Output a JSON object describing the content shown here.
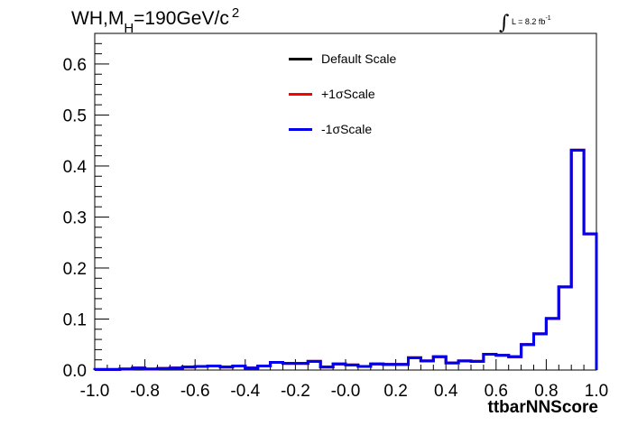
{
  "figure": {
    "title_main": "WH,M",
    "title_sub": "H",
    "title_rest": "=190GeV/c",
    "title_sup": "2",
    "lumi_label": "L = 8.2 fb",
    "lumi_sup": "-1",
    "integral_symbol": "∫"
  },
  "chart_data": {
    "type": "line",
    "title": "WH,M_H=190GeV/c^2",
    "xlabel": "ttbarNNScore",
    "ylabel": "",
    "xlim": [
      -1.0,
      1.0
    ],
    "ylim": [
      0,
      0.66
    ],
    "xticks": [
      -1.0,
      -0.8,
      -0.6,
      -0.4,
      -0.2,
      0.0,
      0.2,
      0.4,
      0.6,
      0.8,
      1.0
    ],
    "xtick_labels": [
      "-1.0",
      "-0.8",
      "-0.6",
      "-0.4",
      "-0.2",
      "-0.0",
      "0.2",
      "0.4",
      "0.6",
      "0.8",
      "1.0"
    ],
    "yticks": [
      0,
      0.1,
      0.2,
      0.3,
      0.4,
      0.5,
      0.6
    ],
    "ytick_labels": [
      "0.0",
      "0.1",
      "0.2",
      "0.3",
      "0.4",
      "0.5",
      "0.6"
    ],
    "grid": false,
    "legend_position": "top-center",
    "bin_edges": [
      -1.0,
      -0.95,
      -0.9,
      -0.85,
      -0.8,
      -0.75,
      -0.7,
      -0.65,
      -0.6,
      -0.55,
      -0.5,
      -0.45,
      -0.4,
      -0.35,
      -0.3,
      -0.25,
      -0.2,
      -0.15,
      -0.1,
      -0.05,
      0.0,
      0.05,
      0.1,
      0.15,
      0.2,
      0.25,
      0.3,
      0.35,
      0.4,
      0.45,
      0.5,
      0.55,
      0.6,
      0.65,
      0.7,
      0.75,
      0.8,
      0.85,
      0.9,
      0.95,
      1.0
    ],
    "series": [
      {
        "name": "Default Scale",
        "color": "#000000",
        "values": [
          0.001,
          0.001,
          0.002,
          0.004,
          0.002,
          0.003,
          0.004,
          0.006,
          0.007,
          0.008,
          0.006,
          0.008,
          0.004,
          0.008,
          0.015,
          0.013,
          0.013,
          0.017,
          0.006,
          0.012,
          0.01,
          0.007,
          0.012,
          0.011,
          0.011,
          0.024,
          0.018,
          0.026,
          0.014,
          0.018,
          0.017,
          0.031,
          0.029,
          0.026,
          0.05,
          0.071,
          0.101,
          0.163,
          0.431,
          0.267
        ]
      },
      {
        "name": "+1σScale",
        "color": "#ff0000",
        "values": [
          0.001,
          0.001,
          0.002,
          0.004,
          0.002,
          0.003,
          0.004,
          0.006,
          0.007,
          0.008,
          0.006,
          0.008,
          0.004,
          0.008,
          0.015,
          0.013,
          0.013,
          0.017,
          0.006,
          0.012,
          0.01,
          0.007,
          0.012,
          0.011,
          0.011,
          0.024,
          0.018,
          0.026,
          0.014,
          0.018,
          0.017,
          0.031,
          0.029,
          0.026,
          0.05,
          0.071,
          0.101,
          0.163,
          0.431,
          0.267
        ]
      },
      {
        "name": "-1σScale",
        "color": "#0000ee",
        "values": [
          0.001,
          0.001,
          0.002,
          0.004,
          0.002,
          0.003,
          0.004,
          0.006,
          0.007,
          0.008,
          0.006,
          0.008,
          0.004,
          0.008,
          0.015,
          0.013,
          0.013,
          0.017,
          0.006,
          0.012,
          0.01,
          0.007,
          0.012,
          0.011,
          0.011,
          0.024,
          0.018,
          0.026,
          0.014,
          0.018,
          0.017,
          0.031,
          0.029,
          0.026,
          0.05,
          0.071,
          0.101,
          0.163,
          0.431,
          0.267
        ]
      }
    ]
  }
}
